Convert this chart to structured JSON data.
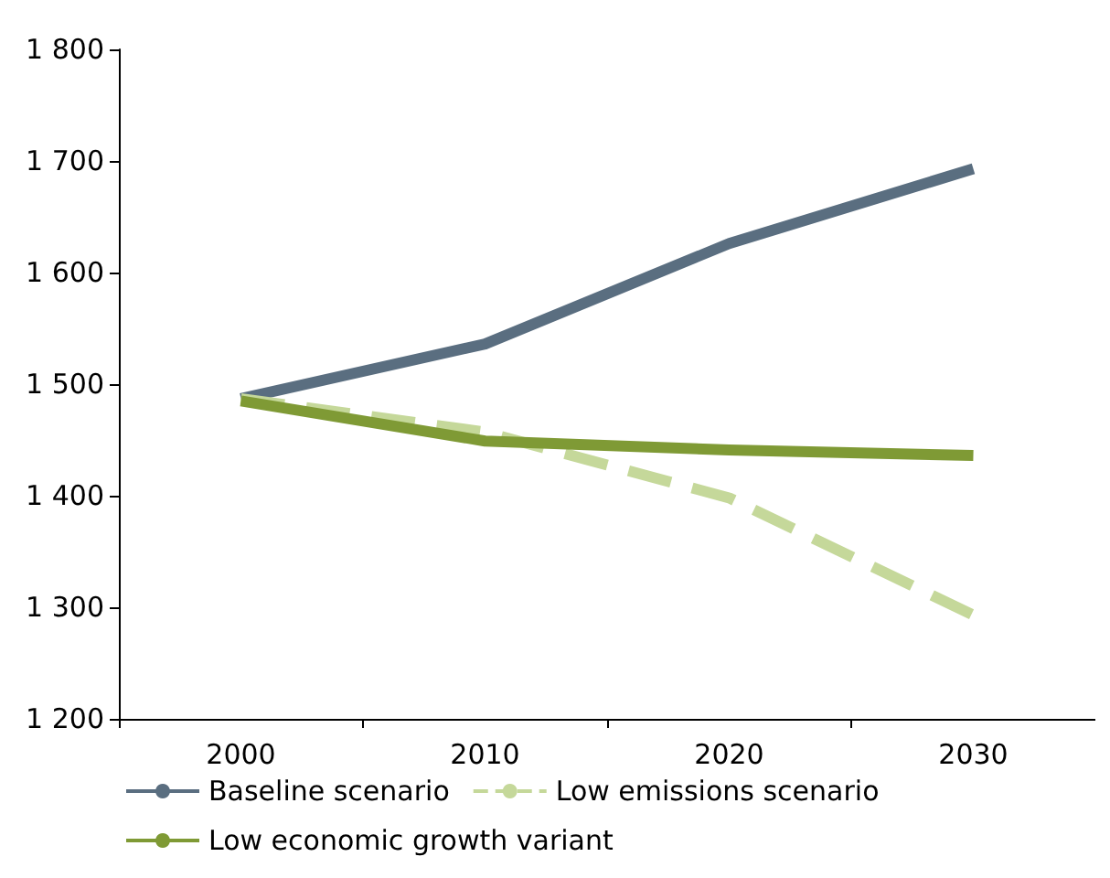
{
  "chart_data": {
    "type": "line",
    "categories": [
      "2000",
      "2010",
      "2020",
      "2030"
    ],
    "series": [
      {
        "name": "Baseline scenario",
        "color": "#5a6e80",
        "values": [
          1487,
          1536,
          1626,
          1693
        ]
      },
      {
        "name": "Low emissions scenario",
        "color": "#c5d89a",
        "values": [
          1487,
          1457,
          1398,
          1293
        ],
        "line_style": "dashed"
      },
      {
        "name": "Low economic growth variant",
        "color": "#7f9a35",
        "values": [
          1485,
          1449,
          1441,
          1436
        ]
      }
    ],
    "ylim": [
      1200,
      1800
    ],
    "yticks": [
      {
        "value": 1200,
        "label": "1 200"
      },
      {
        "value": 1300,
        "label": "1 300"
      },
      {
        "value": 1400,
        "label": "1 400"
      },
      {
        "value": 1500,
        "label": "1 500"
      },
      {
        "value": 1600,
        "label": "1 600"
      },
      {
        "value": 1700,
        "label": "1 700"
      },
      {
        "value": 1800,
        "label": "1 800"
      }
    ],
    "grid": false,
    "legend": "bottom",
    "marker": "none",
    "line_style": "solid"
  }
}
